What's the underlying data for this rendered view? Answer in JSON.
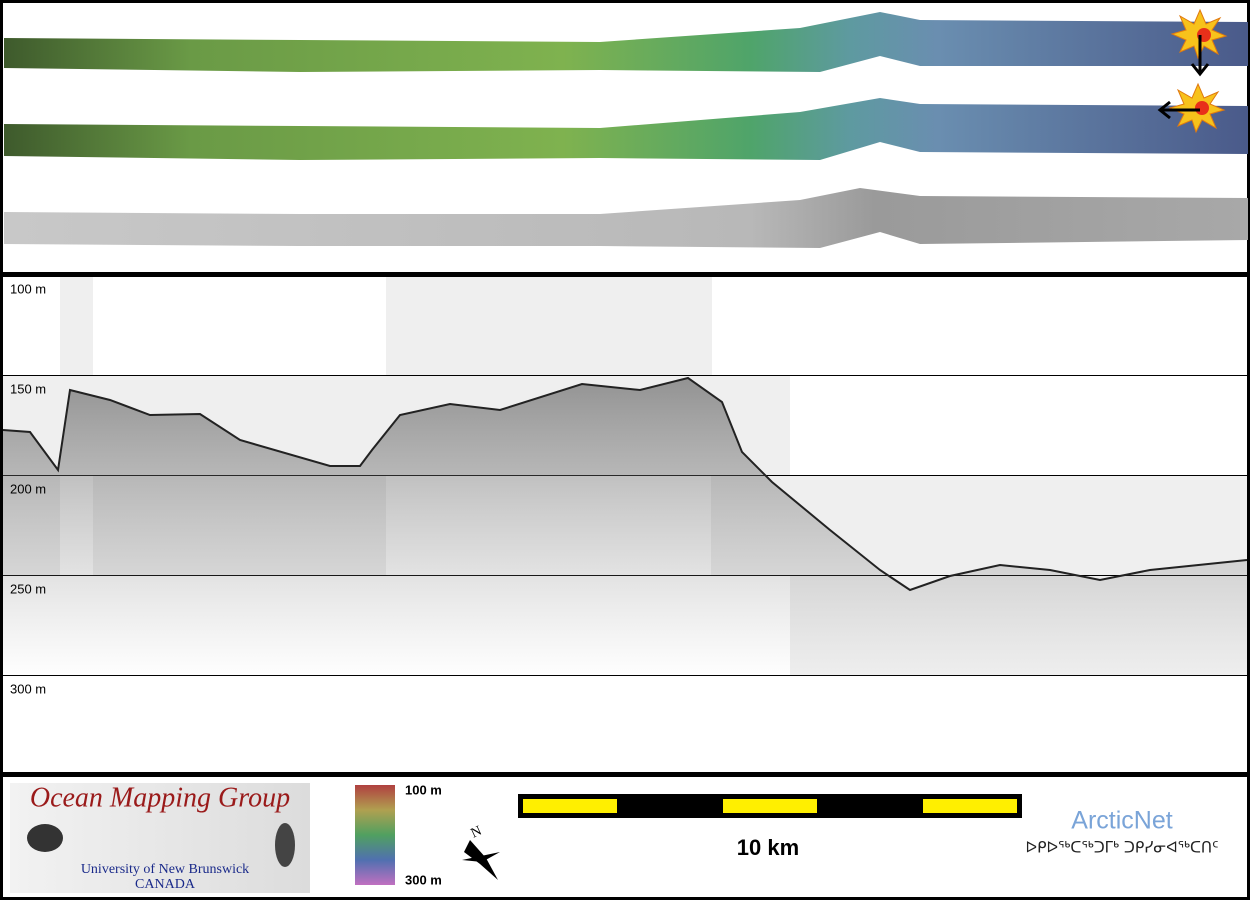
{
  "profile": {
    "depth_labels": [
      "100 m",
      "150 m",
      "200 m",
      "250 m",
      "300 m"
    ]
  },
  "logo": {
    "title": "Ocean Mapping Group",
    "university": "University of New Brunswick",
    "country": "CANADA"
  },
  "colorbar": {
    "top_label": "100 m",
    "bottom_label": "300 m"
  },
  "north": "N",
  "scale_bar": {
    "label": "10 km"
  },
  "partner": {
    "name": "ArcticNet",
    "inuktitut": "ᐅᑭᐅᖅᑕᖅᑐᒥᒃ ᑐᑭᓯᓂᐊᖅᑕᑎᑦ"
  }
}
